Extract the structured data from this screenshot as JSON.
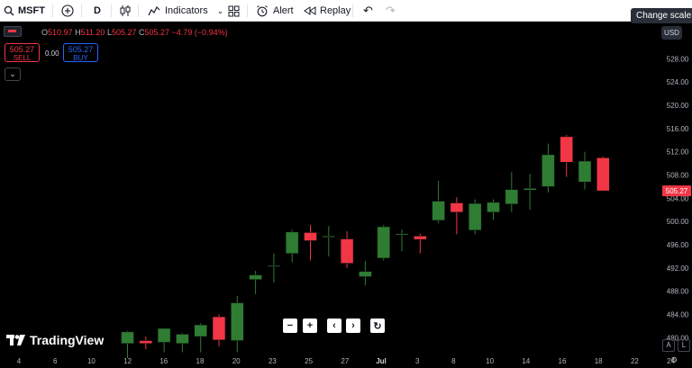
{
  "toolbar": {
    "symbol": "MSFT",
    "interval": "D",
    "indicators_label": "Indicators",
    "alert_label": "Alert",
    "replay_label": "Replay"
  },
  "tooltip": "Change scale cu",
  "legend": {
    "open_label": "O",
    "open": "510.97",
    "high_label": "H",
    "high": "511.20",
    "low_label": "L",
    "low": "505.27",
    "close_label": "C",
    "close": "505.27",
    "change": "−4.79 (−0.94%)"
  },
  "trade": {
    "sell_price": "505.27",
    "sell_label": "SELL",
    "spread": "0.00",
    "buy_price": "505.27",
    "buy_label": "BUY"
  },
  "currency": "USD",
  "price_axis": {
    "ticks": [
      "528.00",
      "524.00",
      "520.00",
      "516.00",
      "512.00",
      "508.00",
      "504.00",
      "500.00",
      "496.00",
      "492.00",
      "488.00",
      "484.00",
      "480.00"
    ],
    "last_price": "505.27"
  },
  "time_axis": {
    "ticks": [
      "4",
      "6",
      "10",
      "12",
      "16",
      "18",
      "20",
      "23",
      "25",
      "27",
      "Jul",
      "3",
      "8",
      "10",
      "14",
      "16",
      "18",
      "22",
      "24"
    ]
  },
  "logo_text": "TradingView",
  "scale_buttons": {
    "auto": "A",
    "log": "L"
  },
  "colors": {
    "up": "#2e7d32",
    "down": "#f23645",
    "background": "#000000"
  },
  "chart_data": {
    "type": "candlestick",
    "ylim": [
      478.5,
      531
    ],
    "candles": [
      {
        "o": 479.0,
        "h": 481.2,
        "l": 476.5,
        "c": 481.0
      },
      {
        "o": 479.5,
        "h": 480.2,
        "l": 478.0,
        "c": 479.0
      },
      {
        "o": 479.2,
        "h": 481.5,
        "l": 477.5,
        "c": 481.6
      },
      {
        "o": 479.0,
        "h": 480.8,
        "l": 477.5,
        "c": 480.6
      },
      {
        "o": 480.2,
        "h": 482.5,
        "l": 477.5,
        "c": 482.2
      },
      {
        "o": 483.6,
        "h": 484.0,
        "l": 478.5,
        "c": 479.6
      },
      {
        "o": 479.5,
        "h": 487.2,
        "l": 477.5,
        "c": 486.0
      },
      {
        "o": 490.0,
        "h": 491.5,
        "l": 487.5,
        "c": 490.8
      },
      {
        "o": 492.3,
        "h": 494.5,
        "l": 489.5,
        "c": 492.4
      },
      {
        "o": 494.5,
        "h": 498.6,
        "l": 493.0,
        "c": 498.2
      },
      {
        "o": 498.1,
        "h": 499.4,
        "l": 493.3,
        "c": 496.7
      },
      {
        "o": 497.3,
        "h": 499.2,
        "l": 494.0,
        "c": 497.5
      },
      {
        "o": 497.0,
        "h": 498.3,
        "l": 492.0,
        "c": 492.8
      },
      {
        "o": 490.5,
        "h": 493.2,
        "l": 489.0,
        "c": 491.4
      },
      {
        "o": 493.7,
        "h": 499.4,
        "l": 493.3,
        "c": 499.1
      },
      {
        "o": 497.7,
        "h": 498.6,
        "l": 494.9,
        "c": 497.9
      },
      {
        "o": 497.5,
        "h": 497.9,
        "l": 494.5,
        "c": 496.9
      },
      {
        "o": 500.2,
        "h": 507.0,
        "l": 499.7,
        "c": 503.5
      },
      {
        "o": 503.2,
        "h": 504.2,
        "l": 497.8,
        "c": 501.6
      },
      {
        "o": 498.5,
        "h": 503.8,
        "l": 497.8,
        "c": 503.1
      },
      {
        "o": 501.6,
        "h": 503.8,
        "l": 500.3,
        "c": 503.3
      },
      {
        "o": 503.0,
        "h": 508.5,
        "l": 501.6,
        "c": 505.5
      },
      {
        "o": 505.4,
        "h": 508.2,
        "l": 502.0,
        "c": 505.7
      },
      {
        "o": 506.0,
        "h": 513.4,
        "l": 505.0,
        "c": 511.5
      },
      {
        "o": 514.6,
        "h": 514.9,
        "l": 507.7,
        "c": 510.2
      },
      {
        "o": 506.8,
        "h": 512.0,
        "l": 505.5,
        "c": 510.4
      },
      {
        "o": 510.97,
        "h": 511.2,
        "l": 505.27,
        "c": 505.27
      }
    ]
  }
}
